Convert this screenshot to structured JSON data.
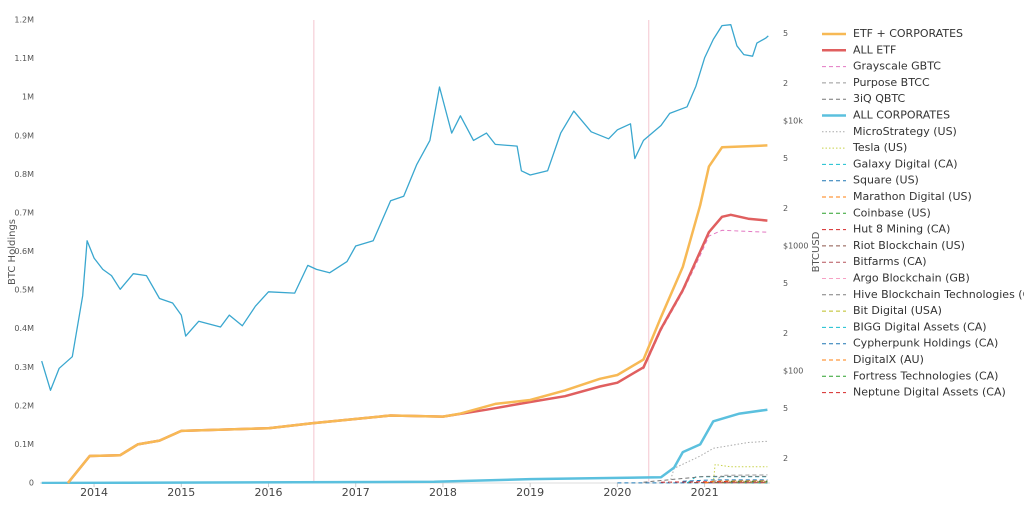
{
  "chart_data": {
    "type": "line",
    "y_label": "BTC Holdings",
    "y2_label": "BTCUSD",
    "xlim": [
      2013.38,
      2021.75
    ],
    "xticks": [
      2014,
      2015,
      2016,
      2017,
      2018,
      2019,
      2020,
      2021
    ],
    "ylim": [
      0,
      1200000
    ],
    "yticks": [
      0,
      {
        "value": 100000,
        "label": "0.1M"
      },
      {
        "value": 200000,
        "label": "0.2M"
      },
      {
        "value": 300000,
        "label": "0.3M"
      },
      {
        "value": 400000,
        "label": "0.4M"
      },
      {
        "value": 500000,
        "label": "0.5M"
      },
      {
        "value": 600000,
        "label": "0.6M"
      },
      {
        "value": 700000,
        "label": "0.7M"
      },
      {
        "value": 800000,
        "label": "0.8M"
      },
      {
        "value": 900000,
        "label": "0.9M"
      },
      {
        "value": 1000000,
        "label": "1M"
      },
      {
        "value": 1100000,
        "label": "1.1M"
      },
      {
        "value": 1200000,
        "label": "1.2M"
      }
    ],
    "y2log": true,
    "y2lim": [
      12.7,
      64300
    ],
    "y2ticks": [
      2,
      5,
      {
        "value": 20,
        "label": "2"
      },
      {
        "value": 50,
        "label": "5"
      },
      {
        "value": 100,
        "label": "$100"
      },
      {
        "value": 200,
        "label": "2"
      },
      {
        "value": 500,
        "label": "5"
      },
      {
        "value": 1000,
        "label": "$1000"
      },
      {
        "value": 2000,
        "label": "2"
      },
      {
        "value": 5000,
        "label": "5"
      },
      {
        "value": 10000,
        "label": "$10k"
      },
      {
        "value": 20000,
        "label": "2"
      },
      {
        "value": 50000,
        "label": "5"
      }
    ],
    "reference_lines_x": [
      2016.52,
      2020.36
    ],
    "reference_color": "#f4c6cf",
    "series": [
      {
        "axis": "y2",
        "color": "#3aa7cf",
        "width": 1.3,
        "dash": "solid",
        "x": [
          2013.4,
          2013.5,
          2013.6,
          2013.75,
          2013.87,
          2013.92,
          2014.0,
          2014.1,
          2014.2,
          2014.3,
          2014.45,
          2014.6,
          2014.75,
          2014.9,
          2015.0,
          2015.05,
          2015.2,
          2015.45,
          2015.55,
          2015.7,
          2015.85,
          2016.0,
          2016.3,
          2016.45,
          2016.55,
          2016.7,
          2016.9,
          2017.0,
          2017.2,
          2017.4,
          2017.55,
          2017.7,
          2017.85,
          2017.96,
          2018.1,
          2018.2,
          2018.35,
          2018.5,
          2018.6,
          2018.85,
          2018.9,
          2019.0,
          2019.2,
          2019.35,
          2019.5,
          2019.7,
          2019.9,
          2020.0,
          2020.15,
          2020.2,
          2020.3,
          2020.5,
          2020.6,
          2020.8,
          2020.9,
          2021.0,
          2021.1,
          2021.2,
          2021.3,
          2021.37,
          2021.45,
          2021.55,
          2021.6,
          2021.7,
          2021.73
        ],
        "values": [
          120,
          70,
          105,
          130,
          400,
          1100,
          800,
          650,
          580,
          450,
          600,
          580,
          380,
          350,
          280,
          190,
          250,
          225,
          280,
          230,
          330,
          430,
          420,
          700,
          650,
          610,
          750,
          1000,
          1100,
          2300,
          2500,
          4500,
          7000,
          18700,
          8000,
          11000,
          7000,
          8000,
          6500,
          6300,
          4000,
          3700,
          4000,
          8000,
          12000,
          8200,
          7200,
          8500,
          9500,
          5000,
          7000,
          9200,
          11500,
          13000,
          19000,
          32000,
          45000,
          58000,
          59000,
          40000,
          34000,
          33000,
          42000,
          46000,
          48000
        ]
      },
      {
        "name": "ETF + CORPORATES",
        "color": "#f7b955",
        "width": 2.5,
        "dash": "solid",
        "x": [
          2013.7,
          2013.95,
          2014.3,
          2014.5,
          2014.75,
          2015.0,
          2016.0,
          2016.5,
          2017.4,
          2018.0,
          2018.2,
          2018.6,
          2019.0,
          2019.4,
          2019.8,
          2020.0,
          2020.3,
          2020.5,
          2020.75,
          2020.95,
          2021.05,
          2021.2,
          2021.72
        ],
        "values": [
          0,
          70000,
          72000,
          100000,
          110000,
          135000,
          142000,
          155000,
          175000,
          172000,
          180000,
          205000,
          215000,
          240000,
          270000,
          280000,
          320000,
          430000,
          560000,
          720000,
          820000,
          870000,
          875000
        ]
      },
      {
        "name": "ALL ETF",
        "color": "#e05f5f",
        "width": 2.5,
        "dash": "solid",
        "x": [
          2013.7,
          2013.95,
          2014.3,
          2014.5,
          2014.75,
          2015.0,
          2016.0,
          2016.5,
          2017.4,
          2018.0,
          2018.5,
          2019.0,
          2019.4,
          2019.8,
          2020.0,
          2020.3,
          2020.5,
          2020.75,
          2020.95,
          2021.05,
          2021.2,
          2021.3,
          2021.5,
          2021.72
        ],
        "values": [
          0,
          70000,
          72000,
          100000,
          110000,
          135000,
          142000,
          155000,
          175000,
          172000,
          190000,
          210000,
          225000,
          250000,
          260000,
          300000,
          400000,
          500000,
          600000,
          650000,
          690000,
          695000,
          685000,
          680000
        ]
      },
      {
        "name": "Grayscale GBTC",
        "color": "#e377c2",
        "width": 1,
        "dash": "dash",
        "x": [
          2020.3,
          2020.5,
          2020.75,
          2020.95,
          2021.05,
          2021.2,
          2021.72
        ],
        "values": [
          295000,
          395000,
          495000,
          590000,
          640000,
          655000,
          650000
        ]
      },
      {
        "name": "Purpose BTCC",
        "color": "#999999",
        "width": 1,
        "dash": "dash",
        "x": [
          2021.1,
          2021.2,
          2021.72
        ],
        "values": [
          0,
          20000,
          21000
        ]
      },
      {
        "name": "3iQ QBTC",
        "color": "#777777",
        "width": 1,
        "dash": "dash",
        "x": [
          2020.3,
          2021.0,
          2021.72
        ],
        "values": [
          2000,
          17000,
          17000
        ]
      },
      {
        "name": "ALL CORPORATES",
        "color": "#5bc0de",
        "width": 2.5,
        "dash": "solid",
        "x": [
          2013.4,
          2017.9,
          2019.0,
          2020.5,
          2020.65,
          2020.75,
          2020.95,
          2021.1,
          2021.4,
          2021.72
        ],
        "values": [
          0,
          3000,
          10000,
          15000,
          40000,
          80000,
          100000,
          160000,
          180000,
          190000
        ]
      },
      {
        "name": "MicroStrategy (US)",
        "color": "#aaaaaa",
        "width": 1,
        "dash": "dot",
        "x": [
          2020.6,
          2020.65,
          2020.95,
          2021.1,
          2021.5,
          2021.72
        ],
        "values": [
          0,
          38000,
          70000,
          90000,
          105000,
          108000
        ]
      },
      {
        "name": "Tesla (US)",
        "color": "#c8d24a",
        "width": 1,
        "dash": "dot",
        "x": [
          2021.1,
          2021.12,
          2021.3,
          2021.72
        ],
        "values": [
          0,
          48000,
          42000,
          42000
        ]
      },
      {
        "name": "Galaxy Digital (CA)",
        "color": "#17becf",
        "width": 1,
        "dash": "dash",
        "x": [
          2020.8,
          2020.9,
          2021.72
        ],
        "values": [
          0,
          16000,
          16000
        ]
      },
      {
        "name": "Square (US)",
        "color": "#1f77b4",
        "width": 1,
        "dash": "dash",
        "x": [
          2020.75,
          2021.1,
          2021.72
        ],
        "values": [
          4700,
          8000,
          8000
        ]
      },
      {
        "name": "Marathon Digital (US)",
        "color": "#ff7f0e",
        "width": 1,
        "dash": "dash",
        "x": [
          2021.0,
          2021.1,
          2021.72
        ],
        "values": [
          0,
          5000,
          5800
        ]
      },
      {
        "name": "Coinbase (US)",
        "color": "#2ca02c",
        "width": 1,
        "dash": "dash",
        "x": [
          2021.3,
          2021.72
        ],
        "values": [
          4500,
          4500
        ]
      },
      {
        "name": "Hut 8 Mining (CA)",
        "color": "#d62728",
        "width": 1,
        "dash": "dash",
        "x": [
          2020.5,
          2021.72
        ],
        "values": [
          2000,
          5000
        ]
      },
      {
        "name": "Riot Blockchain (US)",
        "color": "#8c564b",
        "width": 1,
        "dash": "dash",
        "x": [
          2020.8,
          2021.72
        ],
        "values": [
          1000,
          3000
        ]
      },
      {
        "name": "Bitfarms (CA)",
        "color": "#b5545c",
        "width": 1,
        "dash": "dash",
        "x": [
          2021.0,
          2021.72
        ],
        "values": [
          500,
          1200
        ]
      },
      {
        "name": "Argo Blockchain (GB)",
        "color": "#f7a1c4",
        "width": 1,
        "dash": "dash",
        "x": [
          2021.0,
          2021.72
        ],
        "values": [
          300,
          1000
        ]
      },
      {
        "name": "Hive Blockchain Technologies (CA)",
        "color": "#7f7f7f",
        "width": 1,
        "dash": "dash",
        "x": [
          2021.0,
          2021.72
        ],
        "values": [
          500,
          1500
        ]
      },
      {
        "name": "Bit Digital (USA)",
        "color": "#bcbd22",
        "width": 1,
        "dash": "dash",
        "x": [
          2021.1,
          2021.72
        ],
        "values": [
          300,
          1000
        ]
      },
      {
        "name": "BIGG Digital Assets (CA)",
        "color": "#17becf",
        "width": 1,
        "dash": "dash",
        "x": [
          2021.1,
          2021.72
        ],
        "values": [
          300,
          500
        ]
      },
      {
        "name": "Cypherpunk Holdings (CA)",
        "color": "#1f77b4",
        "width": 1,
        "dash": "dash",
        "x": [
          2020.0,
          2021.72
        ],
        "values": [
          200,
          300
        ]
      },
      {
        "name": "DigitalX (AU)",
        "color": "#ff7f0e",
        "width": 1,
        "dash": "dash",
        "x": [
          2021.0,
          2021.72
        ],
        "values": [
          100,
          100
        ]
      },
      {
        "name": "Fortress Technologies (CA)",
        "color": "#2ca02c",
        "width": 1,
        "dash": "dash",
        "x": [
          2021.2,
          2021.72
        ],
        "values": [
          100,
          200
        ]
      },
      {
        "name": "Neptune Digital Assets (CA)",
        "color": "#d62728",
        "width": 1,
        "dash": "dash",
        "x": [
          2021.0,
          2021.72
        ],
        "values": [
          100,
          100
        ]
      }
    ]
  }
}
